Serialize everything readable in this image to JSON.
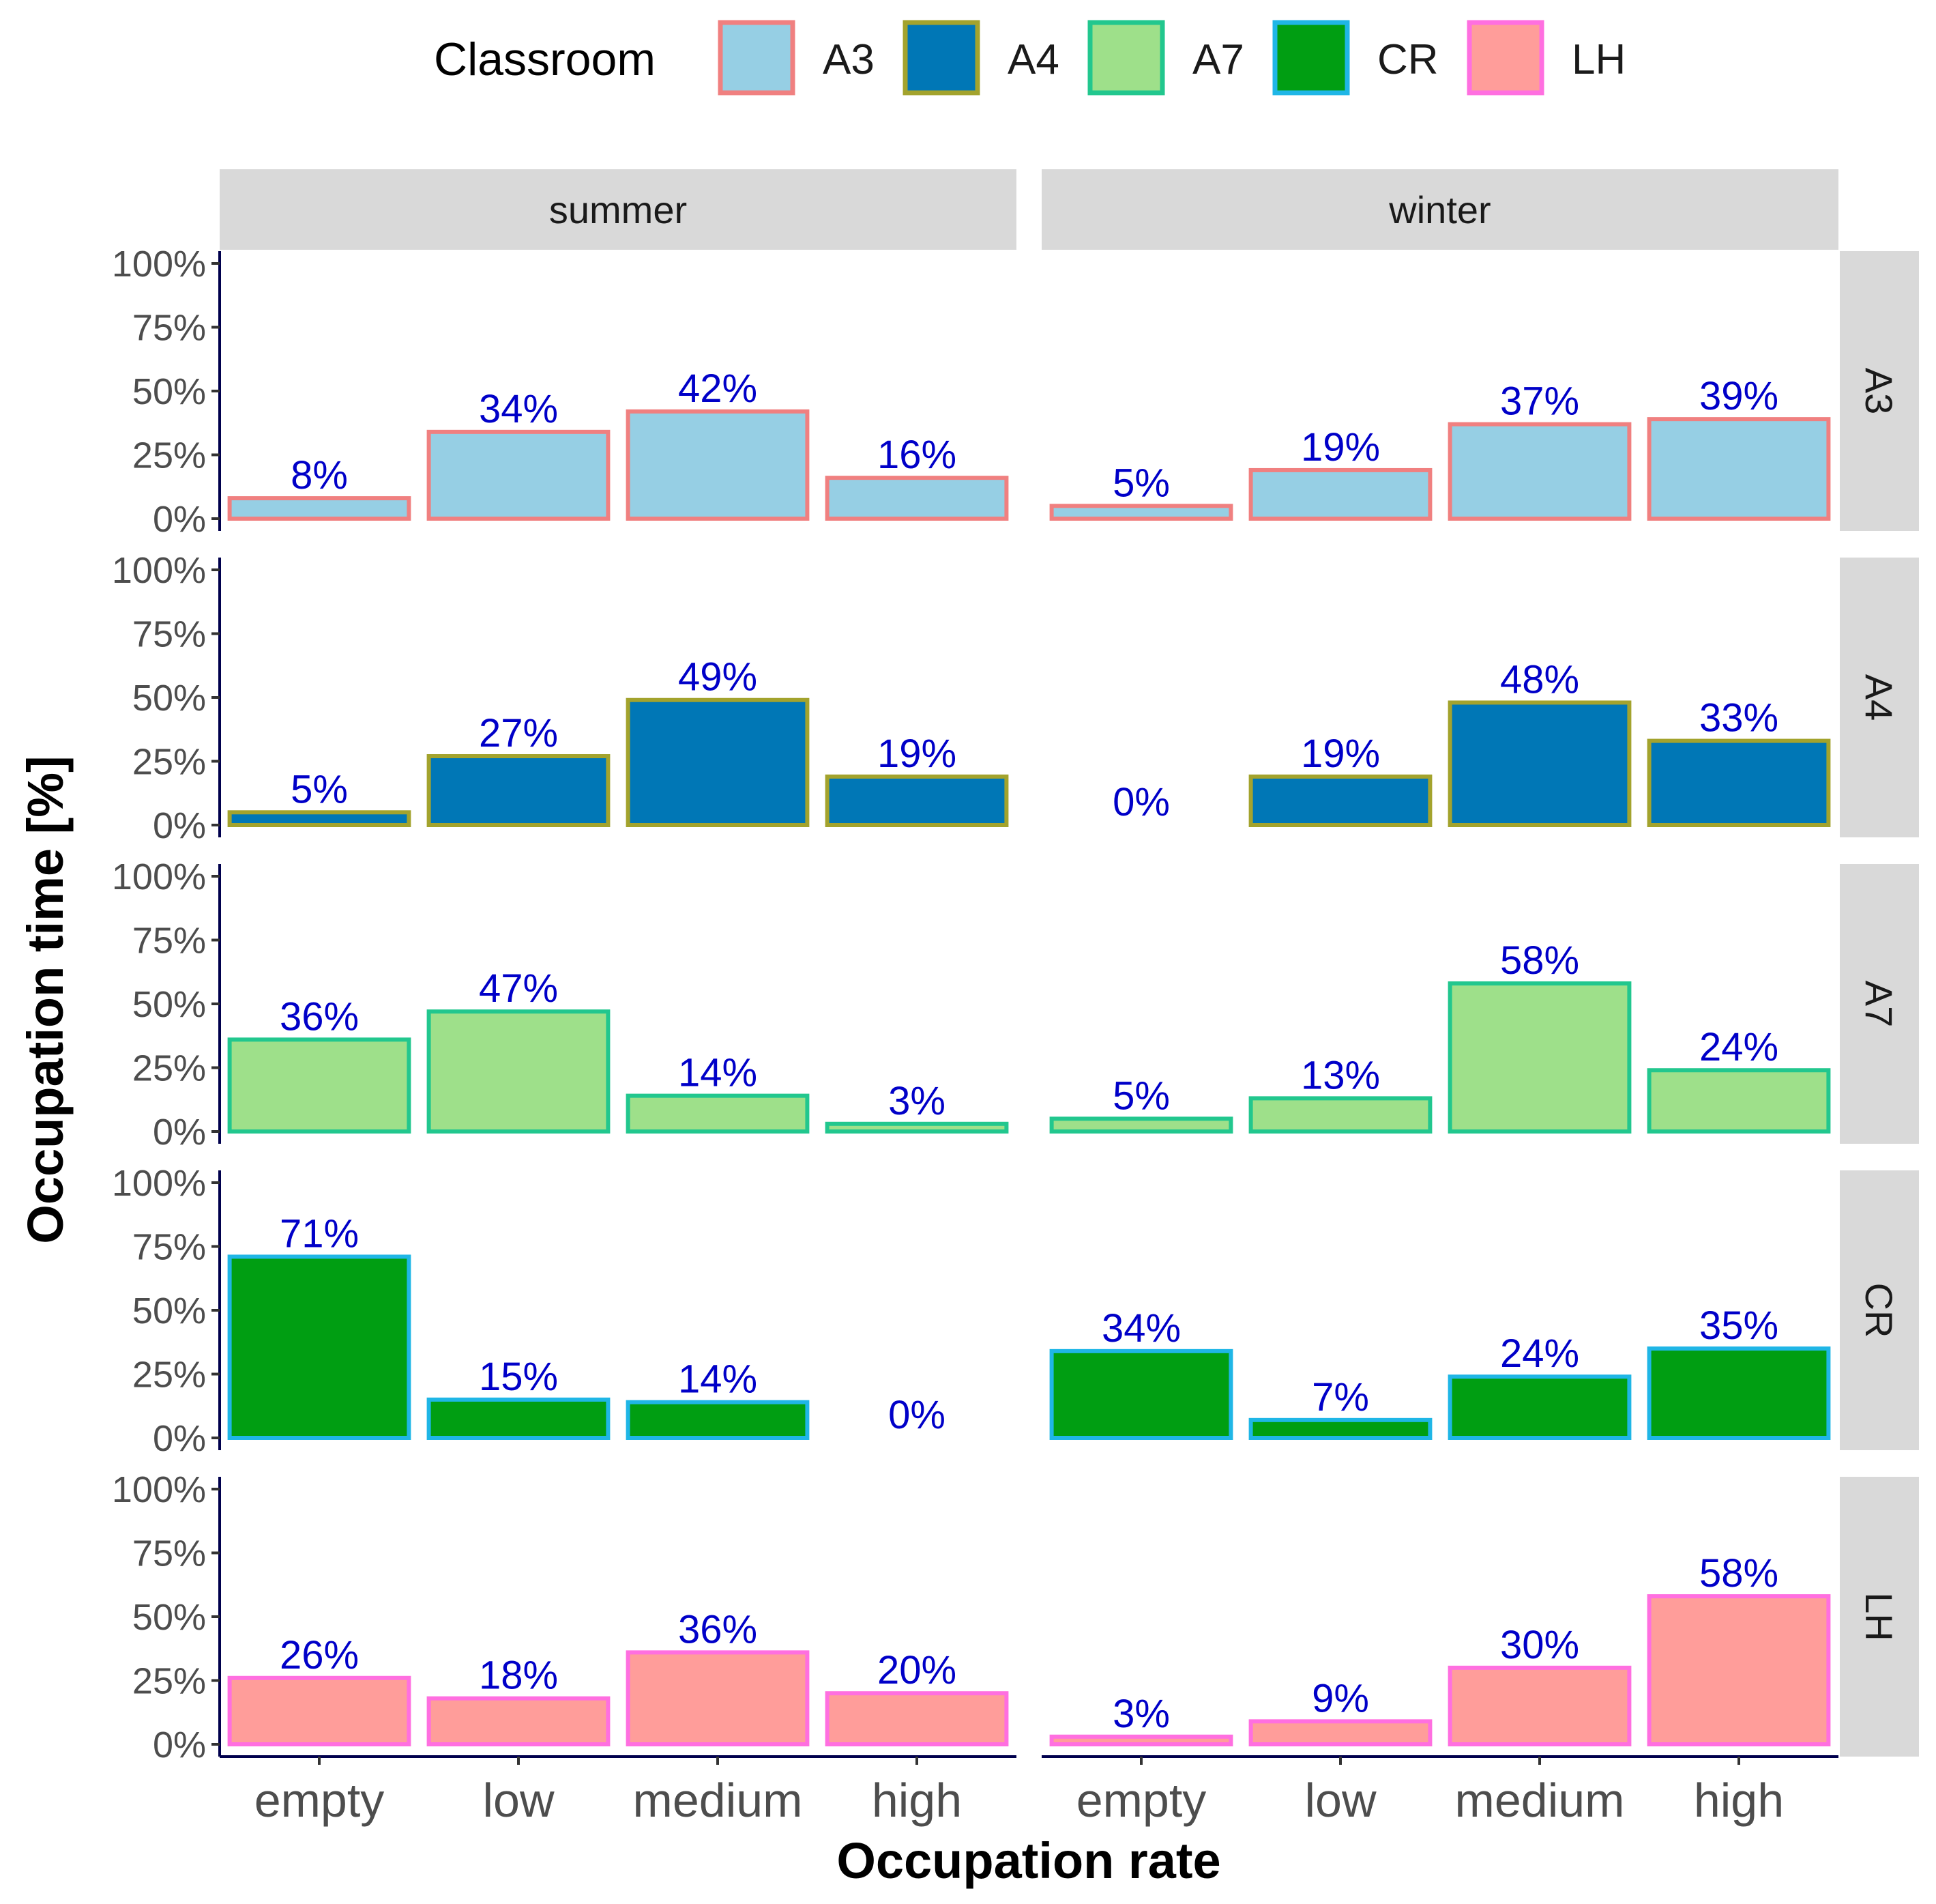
{
  "chart_data": {
    "type": "bar",
    "layout": "faceted grid",
    "title": "",
    "xlabel": "Occupation rate",
    "ylabel": "Occupation time [%]",
    "ylim": [
      0,
      100
    ],
    "y_ticks": [
      "0%",
      "25%",
      "50%",
      "75%",
      "100%"
    ],
    "y_tick_values": [
      0,
      25,
      50,
      75,
      100
    ],
    "categories": [
      "empty",
      "low",
      "medium",
      "high"
    ],
    "columns": [
      "summer",
      "winter"
    ],
    "legend": {
      "title": "Classroom",
      "position": "top",
      "entries": [
        {
          "label": "A3",
          "fill": "#96cfe4",
          "border": "#f08080"
        },
        {
          "label": "A4",
          "fill": "#0077b6",
          "border": "#a3a32d"
        },
        {
          "label": "A7",
          "fill": "#9ee08a",
          "border": "#22c78e"
        },
        {
          "label": "CR",
          "fill": "#009e12",
          "border": "#1fb6e6"
        },
        {
          "label": "LH",
          "fill": "#ff9d9a",
          "border": "#ff6fe0"
        }
      ]
    },
    "label_color": "#0000c8",
    "series": [
      {
        "name": "A3",
        "summer": [
          8,
          34,
          42,
          16
        ],
        "winter": [
          5,
          19,
          37,
          39
        ],
        "summer_labels": [
          "8%",
          "34%",
          "42%",
          "16%"
        ],
        "winter_labels": [
          "5%",
          "19%",
          "37%",
          "39%"
        ]
      },
      {
        "name": "A4",
        "summer": [
          5,
          27,
          49,
          19
        ],
        "winter": [
          0,
          19,
          48,
          33
        ],
        "summer_labels": [
          "5%",
          "27%",
          "49%",
          "19%"
        ],
        "winter_labels": [
          "0%",
          "19%",
          "48%",
          "33%"
        ]
      },
      {
        "name": "A7",
        "summer": [
          36,
          47,
          14,
          3
        ],
        "winter": [
          5,
          13,
          58,
          24
        ],
        "summer_labels": [
          "36%",
          "47%",
          "14%",
          "3%"
        ],
        "winter_labels": [
          "5%",
          "13%",
          "58%",
          "24%"
        ]
      },
      {
        "name": "CR",
        "summer": [
          71,
          15,
          14,
          0
        ],
        "winter": [
          34,
          7,
          24,
          35
        ],
        "summer_labels": [
          "71%",
          "15%",
          "14%",
          "0%"
        ],
        "winter_labels": [
          "34%",
          "7%",
          "24%",
          "35%"
        ]
      },
      {
        "name": "LH",
        "summer": [
          26,
          18,
          36,
          20
        ],
        "winter": [
          3,
          9,
          30,
          58
        ],
        "summer_labels": [
          "26%",
          "18%",
          "36%",
          "20%"
        ],
        "winter_labels": [
          "3%",
          "9%",
          "30%",
          "58%"
        ]
      }
    ]
  }
}
